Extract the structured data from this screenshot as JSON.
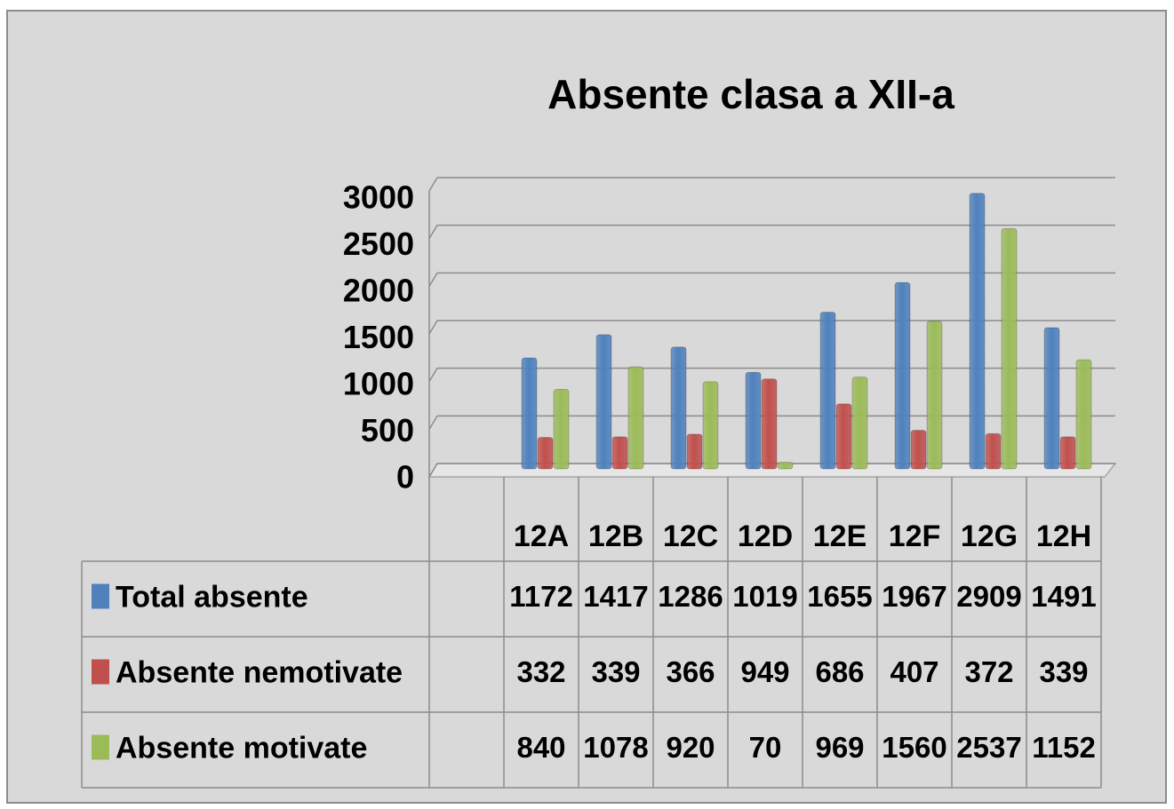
{
  "chart_data": {
    "type": "bar3d",
    "title": "Absente clasa a XII-a",
    "categories": [
      "12A",
      "12B",
      "12C",
      "12D",
      "12E",
      "12F",
      "12G",
      "12H"
    ],
    "series": [
      {
        "name": "Total absente",
        "color": "#4f81bd",
        "values": [
          1172,
          1417,
          1286,
          1019,
          1655,
          1967,
          2909,
          1491
        ]
      },
      {
        "name": "Absente nemotivate",
        "color": "#c0504d",
        "values": [
          332,
          339,
          366,
          949,
          686,
          407,
          372,
          339
        ]
      },
      {
        "name": "Absente motivate",
        "color": "#9bbb59",
        "values": [
          840,
          1078,
          920,
          70,
          969,
          1560,
          2537,
          1152
        ]
      }
    ],
    "ylim": [
      0,
      3000
    ],
    "yticks": [
      0,
      500,
      1000,
      1500,
      2000,
      2500,
      3000
    ],
    "grid": true,
    "data_table": true
  }
}
